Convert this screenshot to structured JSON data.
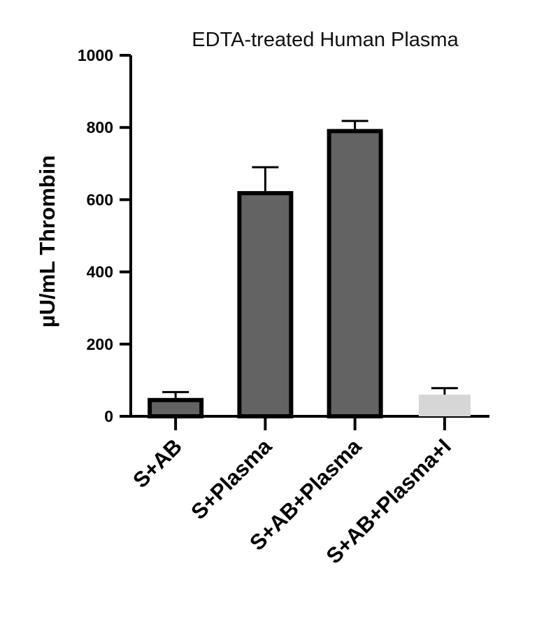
{
  "chart_data": {
    "type": "bar",
    "title": "EDTA-treated Human Plasma",
    "xlabel": "",
    "ylabel": "µU/mL Thrombin",
    "ylim": [
      0,
      1000
    ],
    "yticks": [
      0,
      200,
      400,
      600,
      800,
      1000
    ],
    "categories": [
      "S+AB",
      "S+Plasma",
      "S+AB+Plasma",
      "S+AB+Plasma+I"
    ],
    "values": [
      45,
      618,
      790,
      60
    ],
    "error_upper": [
      67,
      690,
      818,
      78
    ],
    "grid": false,
    "legend": "none",
    "colors": {
      "bars": [
        "#636363",
        "#636363",
        "#636363",
        "#d6d6d6"
      ],
      "outlines": [
        "#000000",
        "#000000",
        "#000000",
        "#d6d6d6"
      ],
      "axis": "#000000"
    }
  }
}
